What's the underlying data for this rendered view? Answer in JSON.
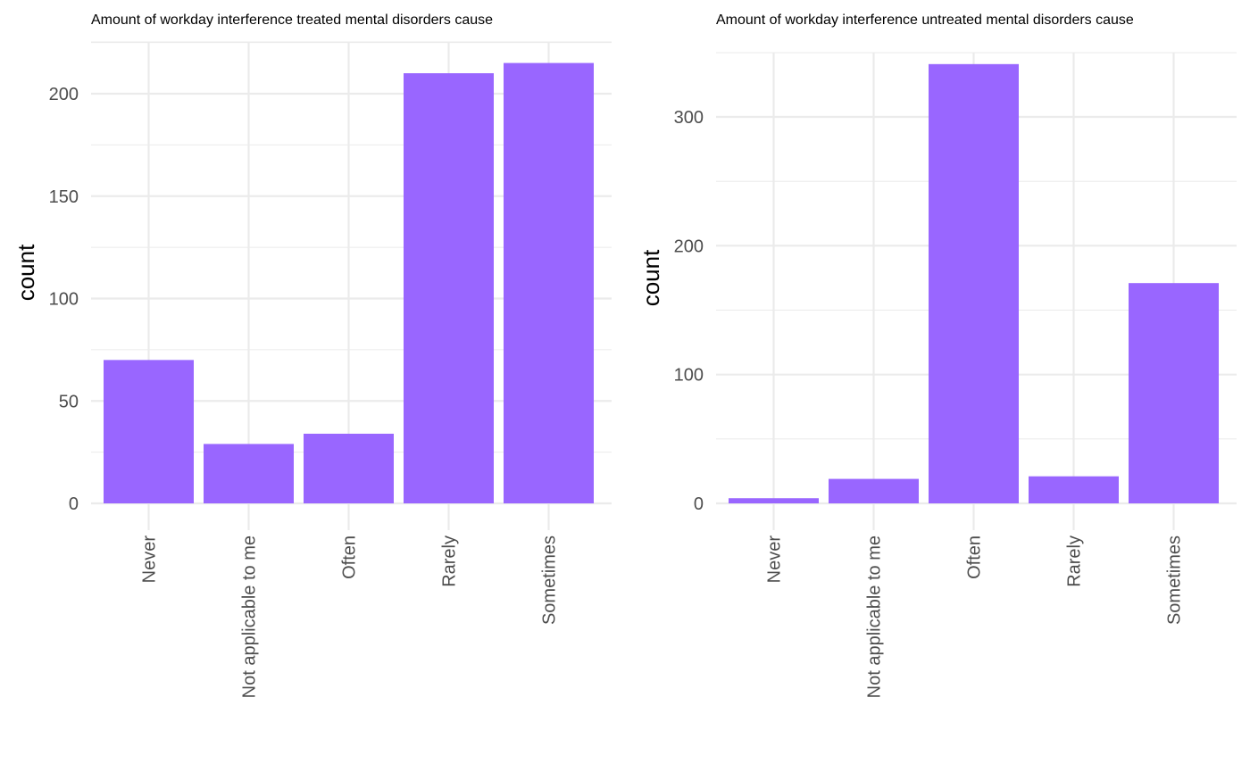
{
  "colors": {
    "bar": "#9966ff",
    "grid": "#ebebeb",
    "tick_text": "#4d4d4d"
  },
  "chart_data": [
    {
      "type": "bar",
      "title": "Amount of workday interference treated mental disorders cause",
      "xlabel": "",
      "ylabel": "count",
      "categories": [
        "Never",
        "Not applicable to me",
        "Often",
        "Rarely",
        "Sometimes"
      ],
      "values": [
        70,
        29,
        34,
        210,
        215
      ],
      "ylim": [
        0,
        225
      ],
      "yticks": [
        0,
        50,
        100,
        150,
        200
      ],
      "grid": true,
      "legend": "none"
    },
    {
      "type": "bar",
      "title": "Amount of workday interference untreated mental disorders cause",
      "xlabel": "",
      "ylabel": "count",
      "categories": [
        "Never",
        "Not applicable to me",
        "Often",
        "Rarely",
        "Sometimes"
      ],
      "values": [
        4,
        19,
        341,
        21,
        171
      ],
      "ylim": [
        0,
        350
      ],
      "yticks": [
        0,
        100,
        200,
        300
      ],
      "grid": true,
      "legend": "none"
    }
  ]
}
